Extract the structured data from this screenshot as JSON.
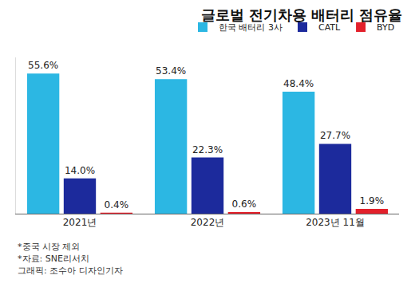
{
  "chart_data": {
    "type": "bar",
    "title": "글로벌 전기차용 배터리 점유율",
    "categories": [
      "2021년",
      "2022년",
      "2023년 11월"
    ],
    "series": [
      {
        "name": "한국 배터리 3사",
        "color": "#2cb7e3",
        "values": [
          55.6,
          53.4,
          48.4
        ],
        "value_labels": [
          "55.6%",
          "53.4%",
          "48.4%"
        ]
      },
      {
        "name": "CATL",
        "color": "#1c2a9c",
        "values": [
          14.0,
          22.3,
          27.7
        ],
        "value_labels": [
          "14.0%",
          "22.3%",
          "27.7%"
        ]
      },
      {
        "name": "BYD",
        "color": "#e3202b",
        "values": [
          0.4,
          0.6,
          1.9
        ],
        "value_labels": [
          "0.4%",
          "0.6%",
          "1.9%"
        ]
      }
    ],
    "ylim": [
      0,
      62
    ],
    "grid": false,
    "legend": "top right",
    "data_labels": true,
    "tick_labels": "x",
    "annotations": [
      "*중국 시장 제외",
      "*자료: SNE리서치",
      "그래픽: 조수아 디자인기자"
    ]
  }
}
